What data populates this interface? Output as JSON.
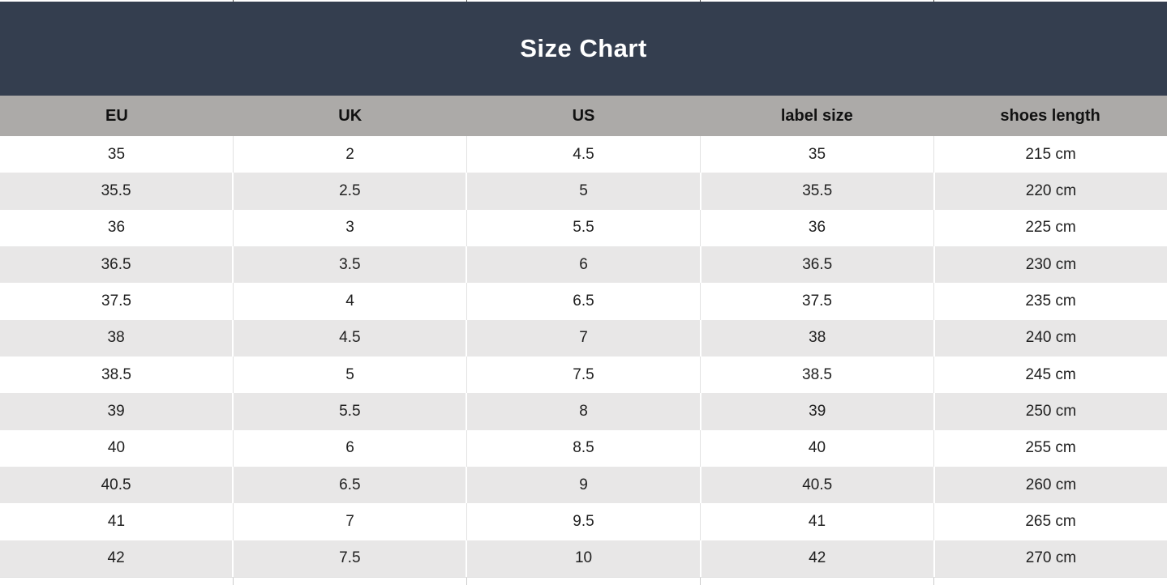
{
  "title": "Size Chart",
  "colors": {
    "title_band_bg": "#343e4f",
    "title_text": "#ffffff",
    "header_row_bg": "#acaaa8",
    "header_text": "#111111",
    "zebra_row_bg": "#e8e7e7",
    "white_row_bg": "#ffffff",
    "body_text": "#202020"
  },
  "chart_data": {
    "type": "table",
    "title": "Size Chart",
    "columns": [
      "EU",
      "UK",
      "US",
      "label size",
      "shoes length"
    ],
    "rows": [
      [
        "35",
        "2",
        "4.5",
        "35",
        "215 cm"
      ],
      [
        "35.5",
        "2.5",
        "5",
        "35.5",
        "220 cm"
      ],
      [
        "36",
        "3",
        "5.5",
        "36",
        "225 cm"
      ],
      [
        "36.5",
        "3.5",
        "6",
        "36.5",
        "230 cm"
      ],
      [
        "37.5",
        "4",
        "6.5",
        "37.5",
        "235 cm"
      ],
      [
        "38",
        "4.5",
        "7",
        "38",
        "240 cm"
      ],
      [
        "38.5",
        "5",
        "7.5",
        "38.5",
        "245 cm"
      ],
      [
        "39",
        "5.5",
        "8",
        "39",
        "250 cm"
      ],
      [
        "40",
        "6",
        "8.5",
        "40",
        "255 cm"
      ],
      [
        "40.5",
        "6.5",
        "9",
        "40.5",
        "260 cm"
      ],
      [
        "41",
        "7",
        "9.5",
        "41",
        "265 cm"
      ],
      [
        "42",
        "7.5",
        "10",
        "42",
        "270 cm"
      ]
    ],
    "layout": {
      "zebra_striping": true,
      "first_data_row_bg": "white",
      "columns_equal_width": true
    }
  }
}
